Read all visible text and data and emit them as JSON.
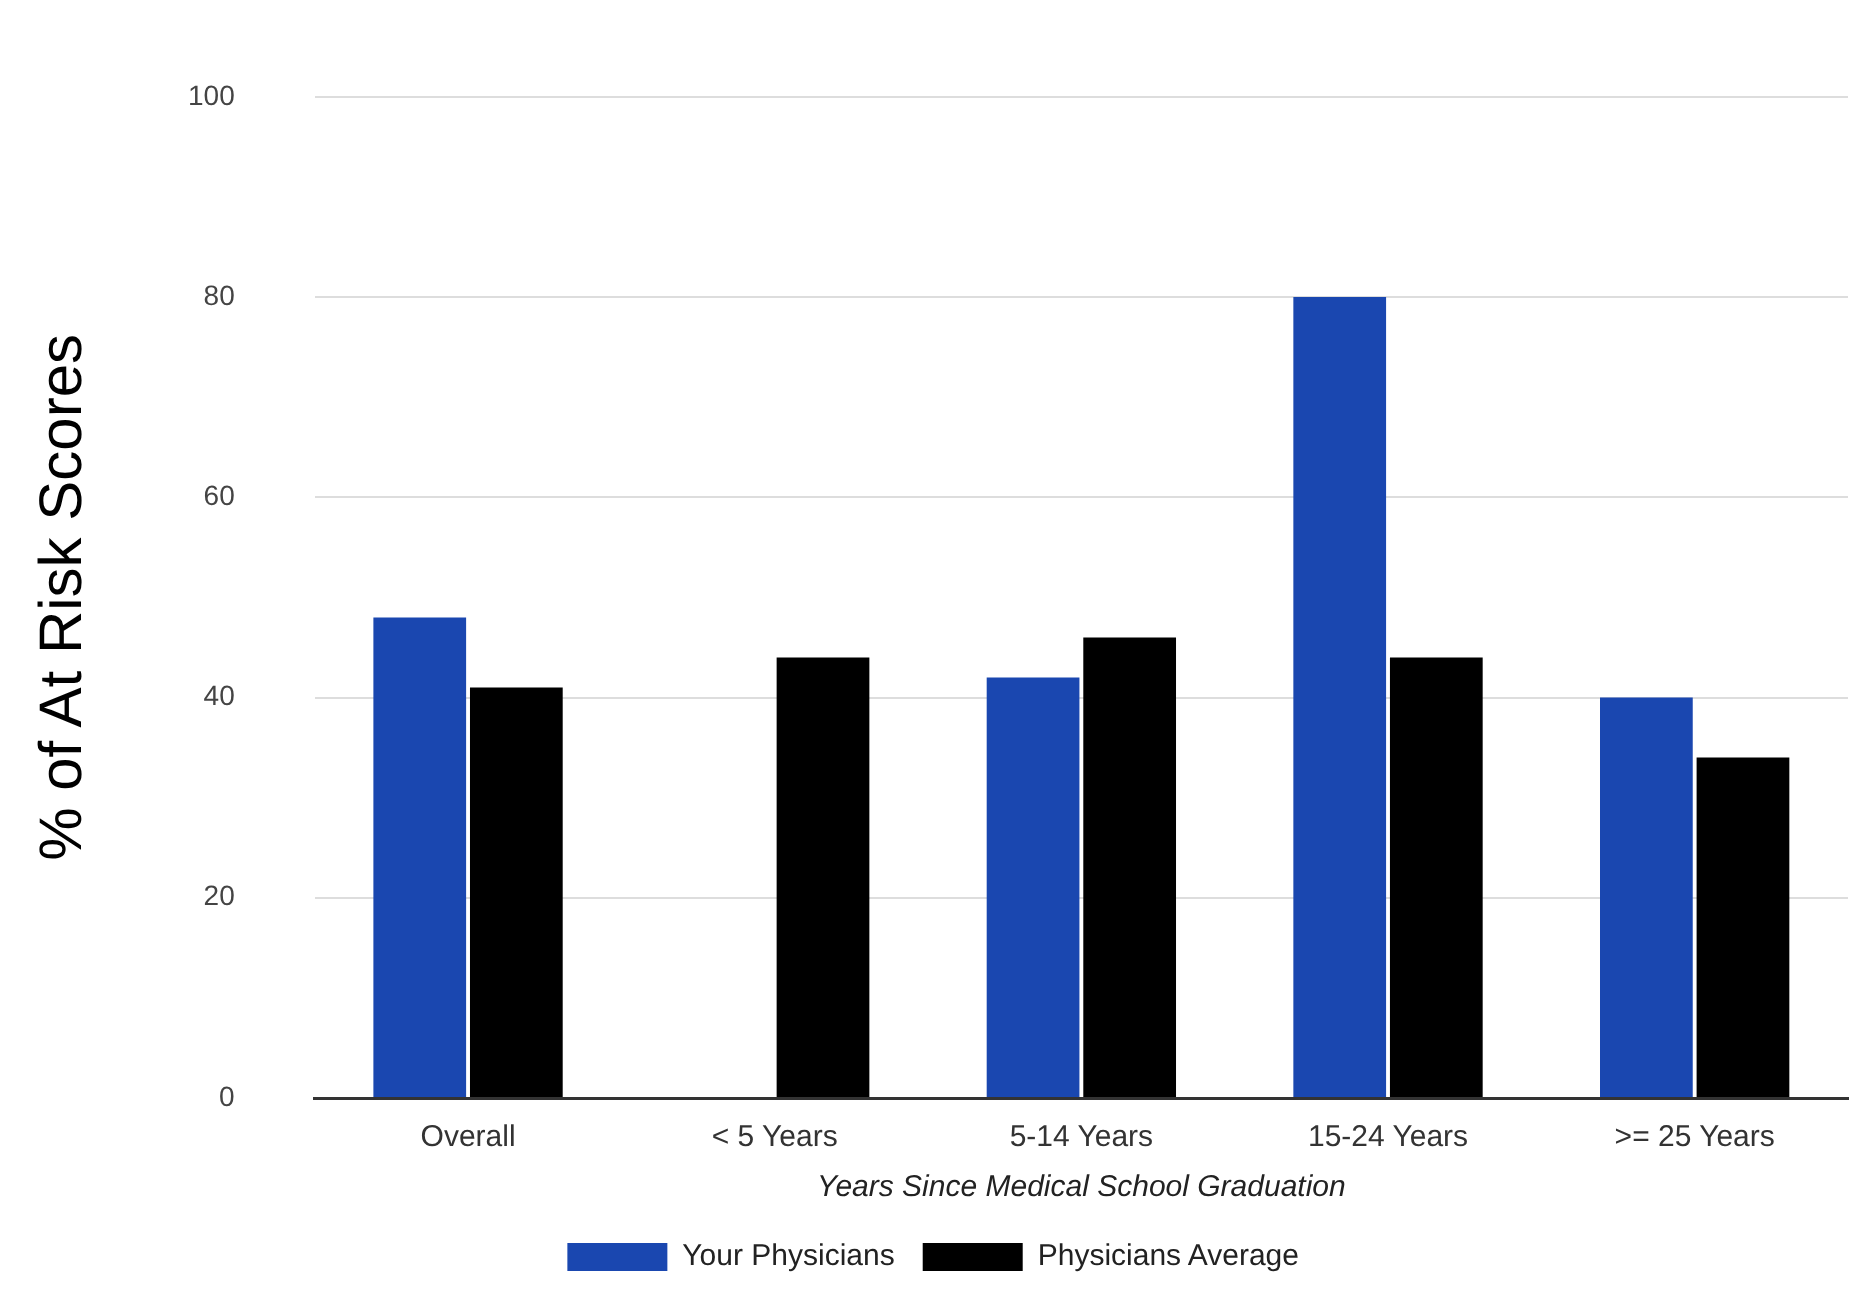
{
  "chart_data": {
    "type": "bar",
    "xlabel": "Years Since Medical School Graduation",
    "ylabel": "% of At Risk Scores",
    "categories": [
      "Overall",
      "< 5 Years",
      "5-14 Years",
      "15-24 Years",
      ">= 25 Years"
    ],
    "series": [
      {
        "name": "Your Physicians",
        "color": "#1a47b0",
        "values": [
          48,
          null,
          42,
          80,
          40
        ]
      },
      {
        "name": "Physicians Average",
        "color": "#000000",
        "values": [
          41,
          44,
          46,
          44,
          34
        ]
      }
    ],
    "ylim": [
      0,
      100
    ],
    "yticks": [
      0,
      20,
      40,
      60,
      80,
      100
    ],
    "grid": "y",
    "legend": "bottom"
  }
}
